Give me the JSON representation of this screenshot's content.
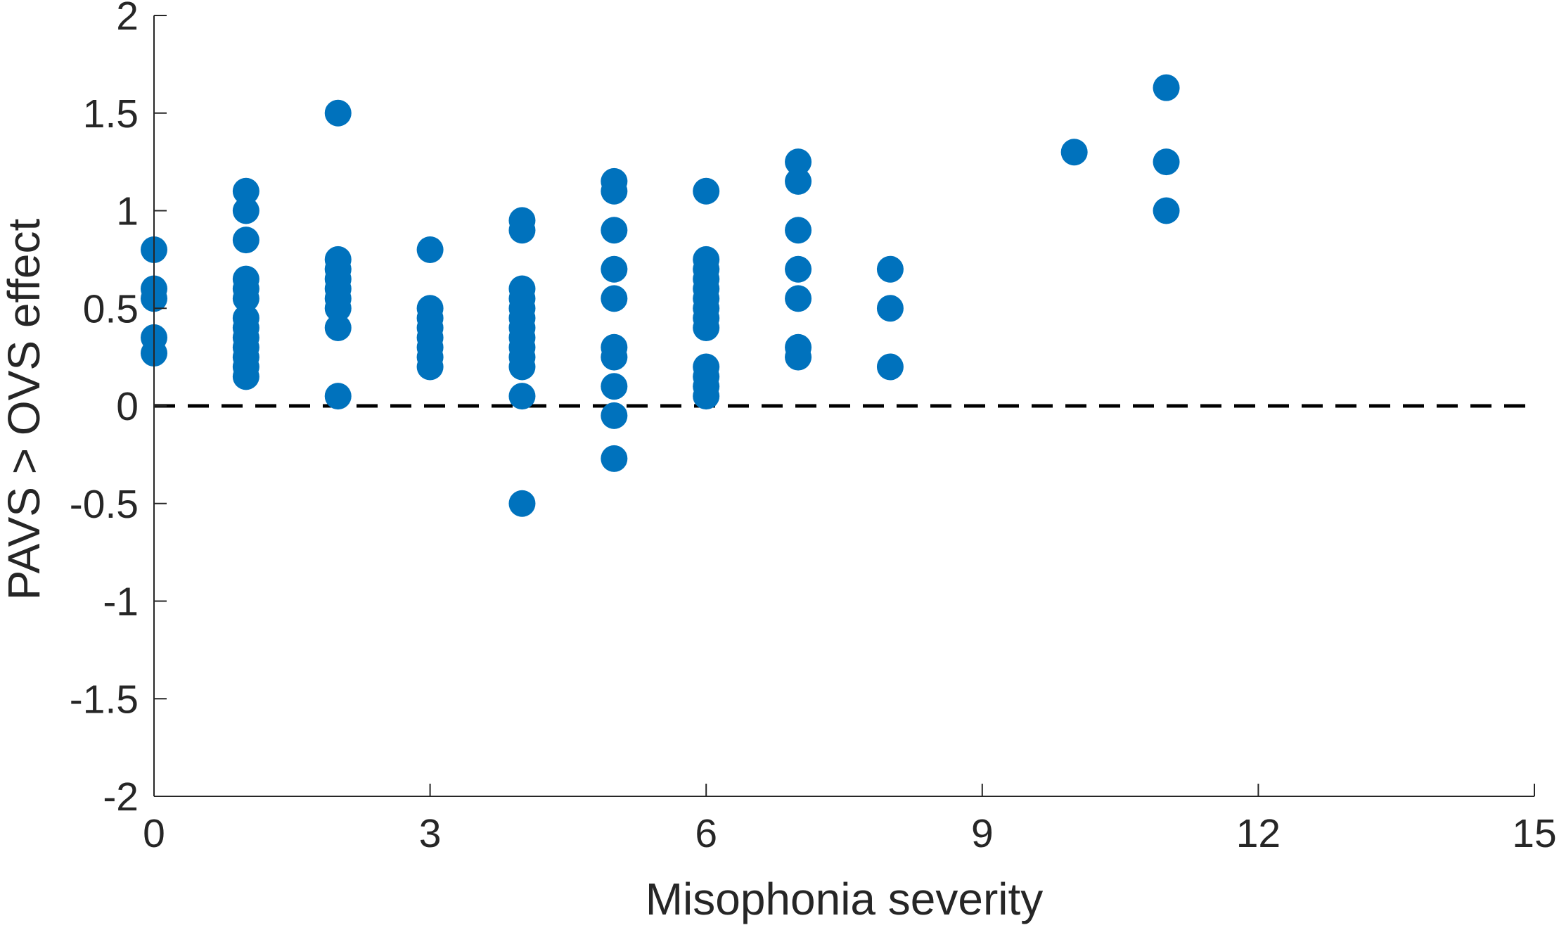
{
  "chart_data": {
    "type": "scatter",
    "title": "",
    "xlabel": "Misophonia severity",
    "ylabel": "PAVS > OVS effect",
    "xlim": [
      0,
      15
    ],
    "ylim": [
      -2,
      2
    ],
    "xticks": [
      0,
      3,
      6,
      9,
      12,
      15
    ],
    "yticks": [
      -2,
      -1.5,
      -1,
      -0.5,
      0,
      0.5,
      1,
      1.5,
      2
    ],
    "xtick_labels": [
      "0",
      "3",
      "6",
      "9",
      "12",
      "15"
    ],
    "ytick_labels": [
      "-2",
      "-1.5",
      "-1",
      "-0.5",
      "0",
      "0.5",
      "1",
      "1.5",
      "2"
    ],
    "grid": false,
    "legend": "none",
    "marker_color": "#0072BD",
    "reference_line": {
      "y": 0,
      "style": "dashed",
      "color": "#000000"
    },
    "series": [
      {
        "points": [
          [
            0,
            0.8
          ],
          [
            0,
            0.6
          ],
          [
            0,
            0.55
          ],
          [
            0,
            0.35
          ],
          [
            0,
            0.27
          ],
          [
            1,
            1.1
          ],
          [
            1,
            1.0
          ],
          [
            1,
            0.85
          ],
          [
            1,
            0.65
          ],
          [
            1,
            0.6
          ],
          [
            1,
            0.55
          ],
          [
            1,
            0.45
          ],
          [
            1,
            0.4
          ],
          [
            1,
            0.35
          ],
          [
            1,
            0.3
          ],
          [
            1,
            0.25
          ],
          [
            1,
            0.2
          ],
          [
            1,
            0.15
          ],
          [
            2,
            1.5
          ],
          [
            2,
            0.75
          ],
          [
            2,
            0.7
          ],
          [
            2,
            0.65
          ],
          [
            2,
            0.6
          ],
          [
            2,
            0.55
          ],
          [
            2,
            0.5
          ],
          [
            2,
            0.4
          ],
          [
            2,
            0.05
          ],
          [
            3,
            0.8
          ],
          [
            3,
            0.5
          ],
          [
            3,
            0.45
          ],
          [
            3,
            0.4
          ],
          [
            3,
            0.35
          ],
          [
            3,
            0.3
          ],
          [
            3,
            0.25
          ],
          [
            3,
            0.2
          ],
          [
            4,
            0.95
          ],
          [
            4,
            0.9
          ],
          [
            4,
            0.6
          ],
          [
            4,
            0.55
          ],
          [
            4,
            0.5
          ],
          [
            4,
            0.45
          ],
          [
            4,
            0.4
          ],
          [
            4,
            0.35
          ],
          [
            4,
            0.3
          ],
          [
            4,
            0.25
          ],
          [
            4,
            0.2
          ],
          [
            4,
            0.05
          ],
          [
            4,
            -0.5
          ],
          [
            5,
            1.15
          ],
          [
            5,
            1.1
          ],
          [
            5,
            0.9
          ],
          [
            5,
            0.7
          ],
          [
            5,
            0.55
          ],
          [
            5,
            0.3
          ],
          [
            5,
            0.25
          ],
          [
            5,
            0.1
          ],
          [
            5,
            -0.05
          ],
          [
            5,
            -0.27
          ],
          [
            6,
            1.1
          ],
          [
            6,
            0.75
          ],
          [
            6,
            0.7
          ],
          [
            6,
            0.65
          ],
          [
            6,
            0.6
          ],
          [
            6,
            0.55
          ],
          [
            6,
            0.5
          ],
          [
            6,
            0.45
          ],
          [
            6,
            0.4
          ],
          [
            6,
            0.2
          ],
          [
            6,
            0.15
          ],
          [
            6,
            0.1
          ],
          [
            6,
            0.05
          ],
          [
            7,
            1.25
          ],
          [
            7,
            1.15
          ],
          [
            7,
            0.9
          ],
          [
            7,
            0.7
          ],
          [
            7,
            0.55
          ],
          [
            7,
            0.3
          ],
          [
            7,
            0.25
          ],
          [
            8,
            0.7
          ],
          [
            8,
            0.5
          ],
          [
            8,
            0.2
          ],
          [
            10,
            1.3
          ],
          [
            11,
            1.63
          ],
          [
            11,
            1.25
          ],
          [
            11,
            1.0
          ]
        ]
      }
    ]
  }
}
